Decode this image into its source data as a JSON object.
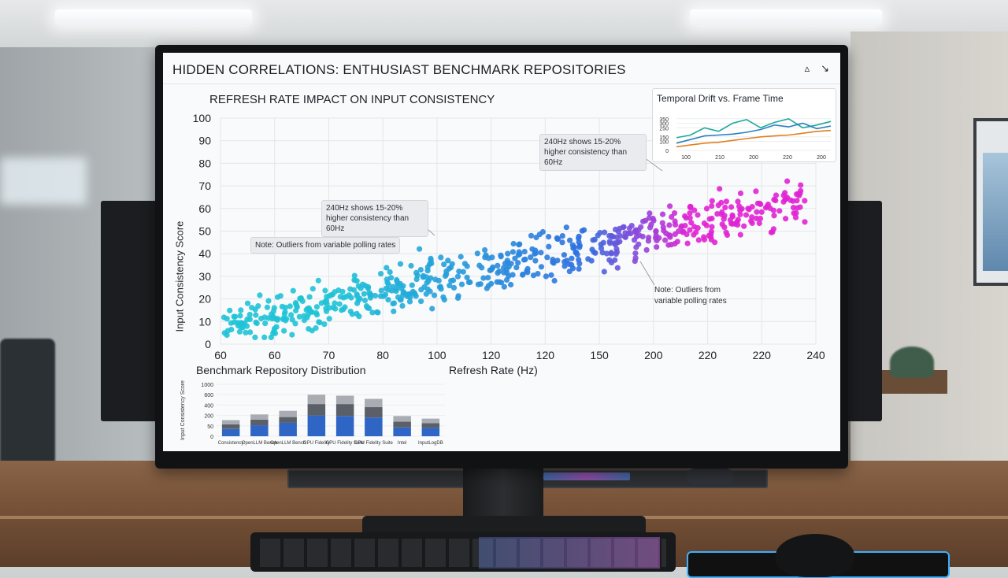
{
  "dashboard": {
    "title": "HIDDEN CORRELATIONS: ENTHUSIAST BENCHMARK REPOSITORIES",
    "ctrl_a": "▵",
    "ctrl_b": "↘"
  },
  "colors": {
    "low": "#1fc3d6",
    "mid": "#2f6fe0",
    "high": "#e024d4",
    "line_teal": "#1fa89a",
    "line_blue": "#2a7fc0",
    "line_orange": "#e0801e",
    "bar_blue": "#2f66c6",
    "bar_dark": "#5b6068",
    "bar_light": "#a9adb3"
  },
  "chart_data": [
    {
      "type": "scatter",
      "title": "REFRESH RATE IMPACT ON INPUT CONSISTENCY",
      "xlabel": "Refresh Rate (Hz)",
      "ylabel": "Input Consistency Score",
      "x_ticks": [
        "60",
        "60",
        "70",
        "80",
        "100",
        "120",
        "120",
        "150",
        "200",
        "220",
        "220",
        "240"
      ],
      "y_ticks": [
        "0",
        "10",
        "20",
        "30",
        "40",
        "50",
        "60",
        "70",
        "80",
        "90",
        "100"
      ],
      "ylim": [
        0,
        100
      ],
      "grid": true,
      "trend": "positive, roughly 8 at 60 Hz to 64 at 240 Hz",
      "annotations": [
        "240Hz shows 15-20% higher consistency than 60Hz",
        "240Hz shows 15-20% higher consistency than 60Hz",
        "Note: Outliers from variable polling rates",
        "Note: Outliers from variable polling rates"
      ]
    },
    {
      "type": "line",
      "title": "Temporal Drift vs. Frame Time",
      "x_ticks": [
        "100",
        "210",
        "200",
        "220",
        "200"
      ],
      "y_ticks": [
        "0",
        "100",
        "150",
        "250",
        "300",
        "350"
      ],
      "series": [
        {
          "color": "teal",
          "values": [
            140,
            170,
            250,
            210,
            300,
            340,
            250,
            310,
            350,
            250,
            280,
            320
          ]
        },
        {
          "color": "blue",
          "values": [
            80,
            120,
            160,
            170,
            180,
            200,
            230,
            280,
            260,
            300,
            240,
            270
          ]
        },
        {
          "color": "orange",
          "values": [
            40,
            60,
            80,
            90,
            110,
            130,
            150,
            160,
            170,
            190,
            210,
            220
          ]
        }
      ]
    },
    {
      "type": "bar",
      "title": "Benchmark Repository Distribution",
      "ylabel": "Input Consistency Score",
      "y_ticks": [
        "0",
        "50",
        "200",
        "400",
        "600",
        "1000"
      ],
      "categories": [
        "Consistency",
        "OpenLLM Bench",
        "OpenLLM Bench",
        "GPU Fidelity",
        "GPU Fidelity Suite",
        "GPU Fidelity Suite",
        "Intel",
        "InputLogDB"
      ],
      "series": [
        {
          "name": "",
          "values": [
            140,
            210,
            260,
            400,
            390,
            360,
            170,
            160
          ]
        },
        {
          "name": "",
          "values": [
            90,
            110,
            110,
            220,
            230,
            200,
            110,
            90
          ]
        },
        {
          "name": "",
          "values": [
            80,
            100,
            120,
            180,
            160,
            160,
            110,
            90
          ]
        }
      ]
    }
  ],
  "scatter_labels": {
    "title": "REFRESH RATE IMPACT ON INPUT CONSISTENCY",
    "xlabel": "Refresh Rate (Hz)",
    "ylabel": "Input Consistency Score",
    "annot1": "240Hz shows 15-20% higher consistency than 60Hz",
    "annot2": "240Hz shows 15-20% higher consistency than 60Hz",
    "annot3": "Note: Outliers from variable polling rates",
    "annot4": "Note: Outliers from variable polling rates"
  },
  "inset_labels": {
    "title": "Temporal Drift vs. Frame Time"
  },
  "bar_labels": {
    "title": "Benchmark Repository Distribution",
    "ylabel": "Input Consistency Score"
  }
}
